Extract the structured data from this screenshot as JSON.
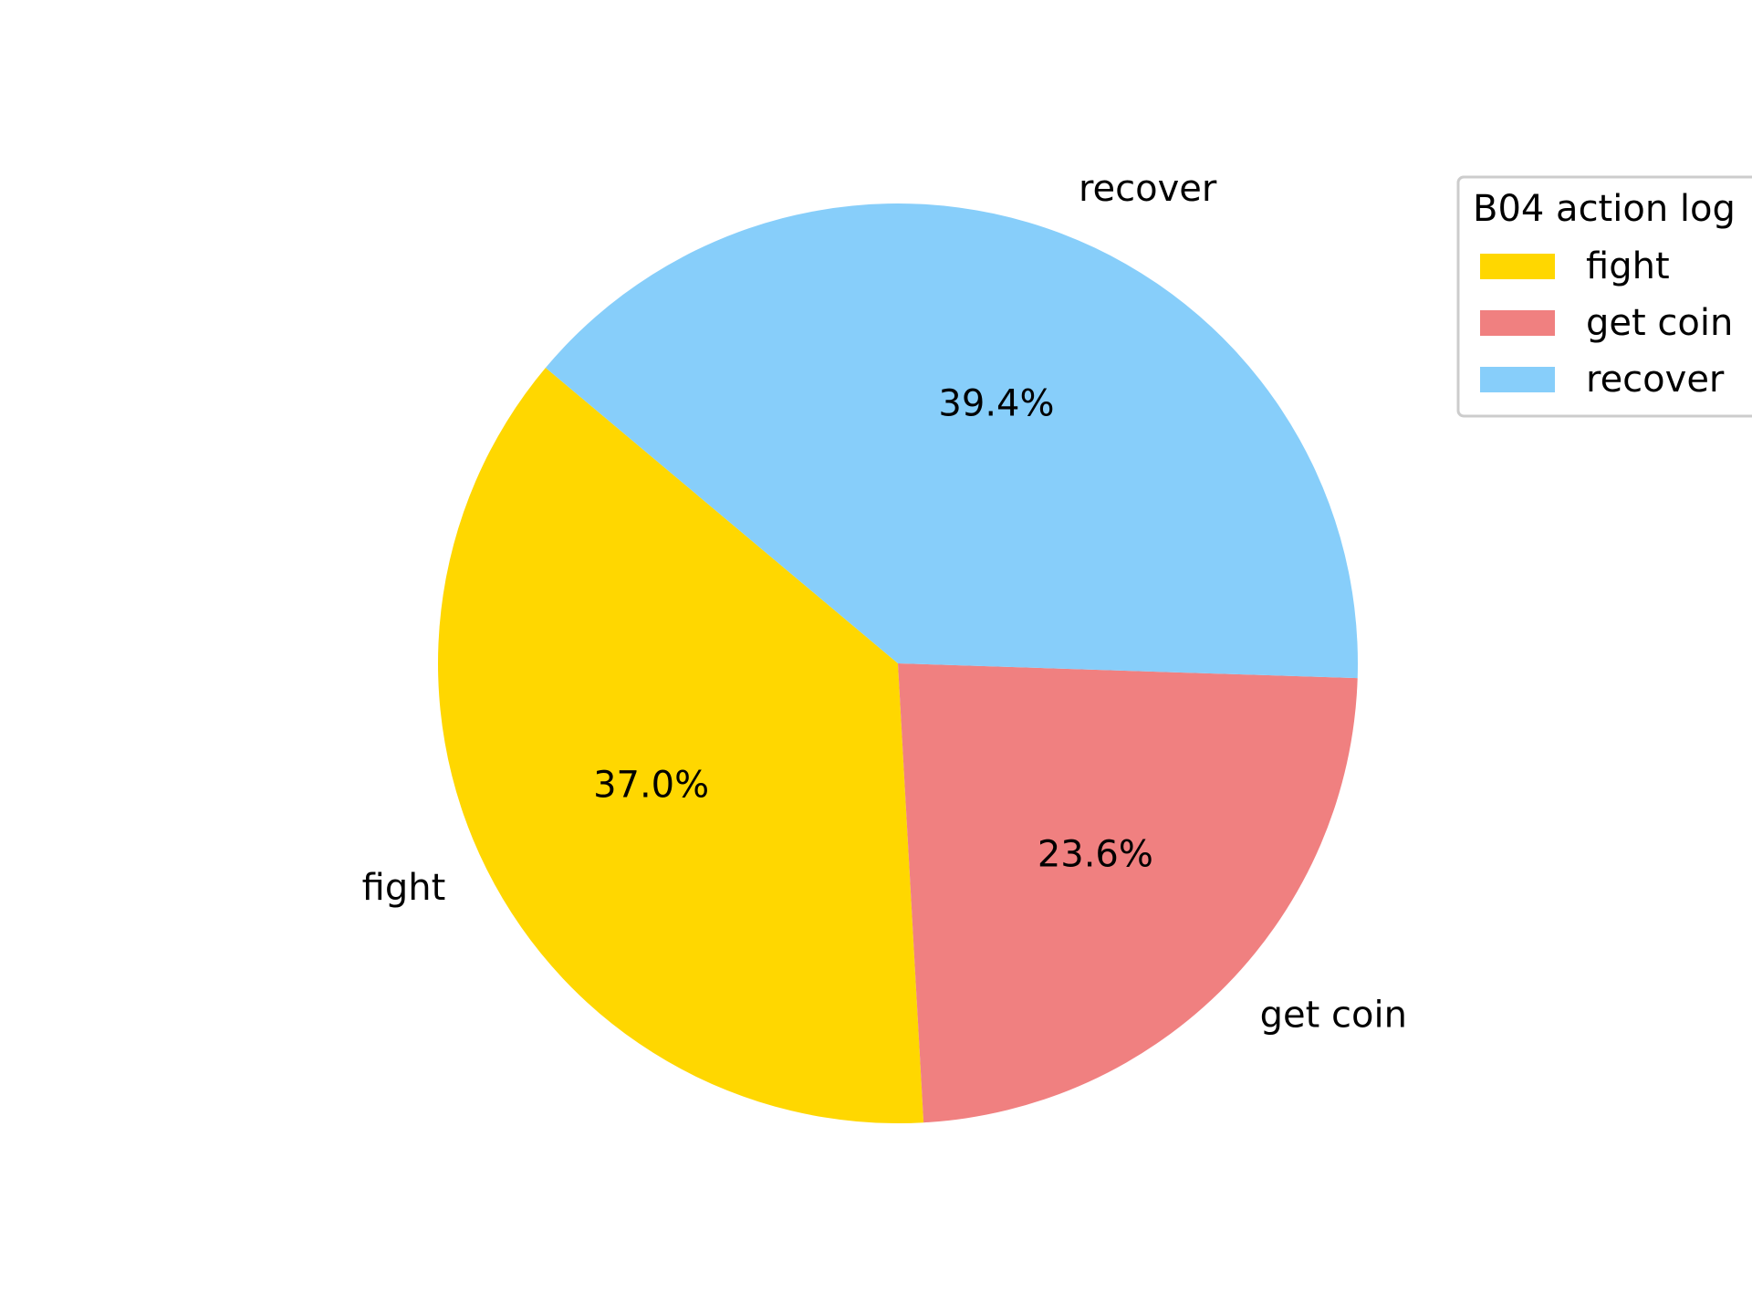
{
  "chart_data": {
    "type": "pie",
    "title": "",
    "slices": [
      {
        "label": "fight",
        "value": 37.0,
        "pct_label": "37.0%",
        "color": "#FFD700"
      },
      {
        "label": "get coin",
        "value": 23.6,
        "pct_label": "23.6%",
        "color": "#F08080"
      },
      {
        "label": "recover",
        "value": 39.4,
        "pct_label": "39.4%",
        "color": "#87CEFA"
      }
    ],
    "start_angle_deg": 140,
    "direction": "counterclockwise",
    "legend": {
      "title": "B04 action log",
      "placement": "upper-right, outside plot",
      "entries": [
        "fight",
        "get coin",
        "recover"
      ]
    }
  }
}
